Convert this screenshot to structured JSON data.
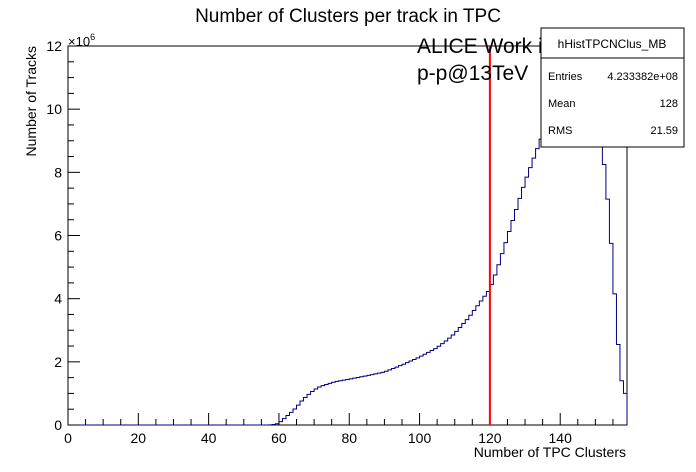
{
  "chart_data": {
    "type": "histogram-step",
    "title": "Number of Clusters per track in TPC",
    "xlabel": "Number of TPC Clusters",
    "ylabel": "Number of Tracks",
    "y_exponent_base": "×10",
    "y_exponent_power": "6",
    "xlim": [
      0,
      159
    ],
    "ylim": [
      0,
      12000000
    ],
    "x_ticks": [
      0,
      20,
      40,
      60,
      80,
      100,
      120,
      140
    ],
    "y_ticks": [
      0,
      2,
      4,
      6,
      8,
      10,
      12
    ],
    "line_color": "#000080",
    "cut_line": {
      "x": 120,
      "color": "#ff0000"
    },
    "annotations": [
      "ALICE Work in Progress",
      "p-p@13TeV"
    ],
    "stats_box": {
      "name": "hHistTPCNClus_MB",
      "entries_label": "Entries",
      "entries_value": "4.233382e+08",
      "mean_label": "Mean",
      "mean_value": "128",
      "rms_label": "RMS",
      "rms_value": "21.59"
    },
    "anchors": [
      [
        0,
        0
      ],
      [
        57,
        0
      ],
      [
        59,
        20000
      ],
      [
        60,
        60000
      ],
      [
        61,
        150000
      ],
      [
        62,
        250000
      ],
      [
        63,
        350000
      ],
      [
        64,
        450000
      ],
      [
        65,
        560000
      ],
      [
        66,
        700000
      ],
      [
        67,
        820000
      ],
      [
        68,
        920000
      ],
      [
        69,
        1020000
      ],
      [
        70,
        1100000
      ],
      [
        71,
        1180000
      ],
      [
        72,
        1230000
      ],
      [
        74,
        1300000
      ],
      [
        76,
        1370000
      ],
      [
        80,
        1450000
      ],
      [
        85,
        1560000
      ],
      [
        90,
        1680000
      ],
      [
        95,
        1900000
      ],
      [
        100,
        2150000
      ],
      [
        105,
        2450000
      ],
      [
        108,
        2700000
      ],
      [
        110,
        2900000
      ],
      [
        112,
        3150000
      ],
      [
        114,
        3400000
      ],
      [
        116,
        3700000
      ],
      [
        118,
        4000000
      ],
      [
        120,
        4300000
      ],
      [
        122,
        4900000
      ],
      [
        124,
        5600000
      ],
      [
        126,
        6300000
      ],
      [
        128,
        7000000
      ],
      [
        130,
        7700000
      ],
      [
        132,
        8300000
      ],
      [
        134,
        8900000
      ],
      [
        136,
        9500000
      ],
      [
        138,
        10000000
      ],
      [
        140,
        10500000
      ],
      [
        142,
        10900000
      ],
      [
        144,
        11200000
      ],
      [
        146,
        11300000
      ],
      [
        148,
        10900000
      ],
      [
        150,
        10000000
      ],
      [
        151,
        9500000
      ],
      [
        152,
        8700000
      ],
      [
        153,
        7800000
      ],
      [
        154,
        6500000
      ],
      [
        155,
        5000000
      ],
      [
        156,
        3300000
      ],
      [
        157,
        1800000
      ],
      [
        158,
        1000000
      ],
      [
        159,
        1000000
      ]
    ]
  }
}
